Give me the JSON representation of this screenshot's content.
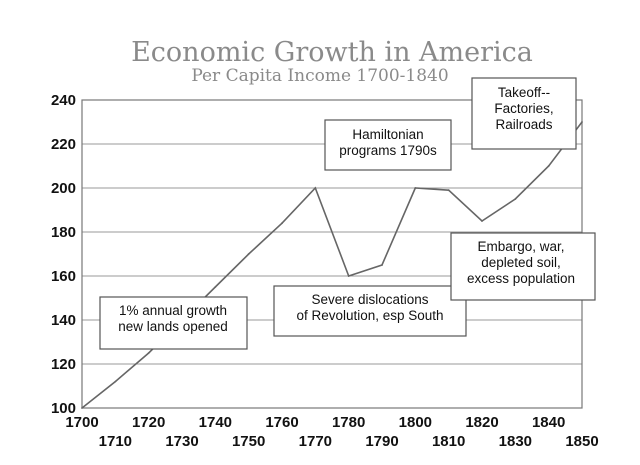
{
  "chart_data": {
    "type": "line",
    "title": "Economic Growth in America",
    "subtitle": "Per Capita Income 1700-1840",
    "xlabel": "",
    "ylabel": "",
    "x": [
      1700,
      1710,
      1720,
      1730,
      1740,
      1750,
      1760,
      1770,
      1780,
      1790,
      1800,
      1810,
      1820,
      1830,
      1840,
      1850
    ],
    "values": [
      100,
      112,
      125,
      140,
      155,
      170,
      184,
      200,
      160,
      165,
      200,
      199,
      185,
      195,
      210,
      230
    ],
    "xlim": [
      1700,
      1850
    ],
    "ylim": [
      100,
      240
    ],
    "yticks": [
      "100",
      "120",
      "140",
      "160",
      "180",
      "200",
      "220",
      "240"
    ],
    "xticks_upper": [
      "1700",
      "1720",
      "1740",
      "1760",
      "1780",
      "1800",
      "1820",
      "1840"
    ],
    "xticks_lower": [
      "1710",
      "1730",
      "1750",
      "1770",
      "1790",
      "1810",
      "1830",
      "1850"
    ],
    "grid": "horizontal",
    "annotations": [
      {
        "lines": [
          "1% annual growth",
          "new lands opened"
        ]
      },
      {
        "lines": [
          "Severe dislocations",
          "of Revolution, esp South"
        ]
      },
      {
        "lines": [
          "Hamiltonian",
          "programs 1790s"
        ]
      },
      {
        "lines": [
          "Embargo, war,",
          "depleted soil,",
          "excess population"
        ]
      },
      {
        "lines": [
          "Takeoff--",
          "Factories,",
          "Railroads"
        ]
      }
    ]
  }
}
